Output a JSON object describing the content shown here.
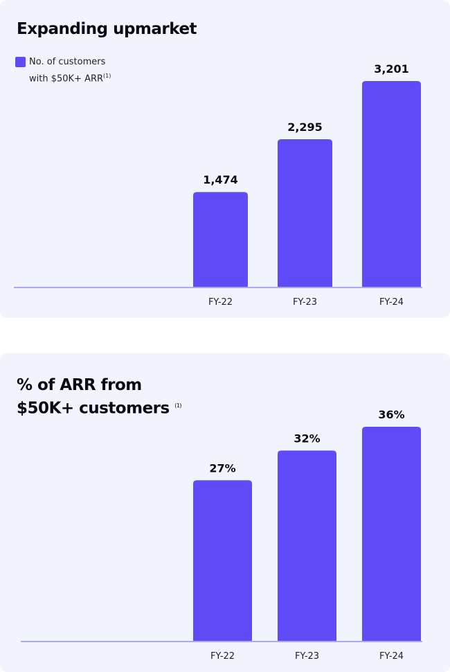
{
  "colors": {
    "bar": "#5f4bf7",
    "axis": "#a9aaf5"
  },
  "chart_data": [
    {
      "type": "bar",
      "title": "Expanding upmarket",
      "legend": {
        "line1": "No. of customers",
        "line2": "with $50K+ ARR",
        "sup": "(1)",
        "placement": "top-left"
      },
      "categories": [
        "FY-22",
        "FY-23",
        "FY-24"
      ],
      "values": [
        1474,
        2295,
        3201
      ],
      "labels": [
        "1,474",
        "2,295",
        "3,201"
      ],
      "ylim": [
        0,
        3201
      ],
      "grid": false
    },
    {
      "type": "bar",
      "title_line1": "% of ARR from",
      "title_line2": "$50K+ customers",
      "title_sup": "(1)",
      "categories": [
        "FY-22",
        "FY-23",
        "FY-24"
      ],
      "values": [
        27,
        32,
        36
      ],
      "labels": [
        "27%",
        "32%",
        "36%"
      ],
      "ylim": [
        0,
        36
      ],
      "grid": false
    }
  ]
}
